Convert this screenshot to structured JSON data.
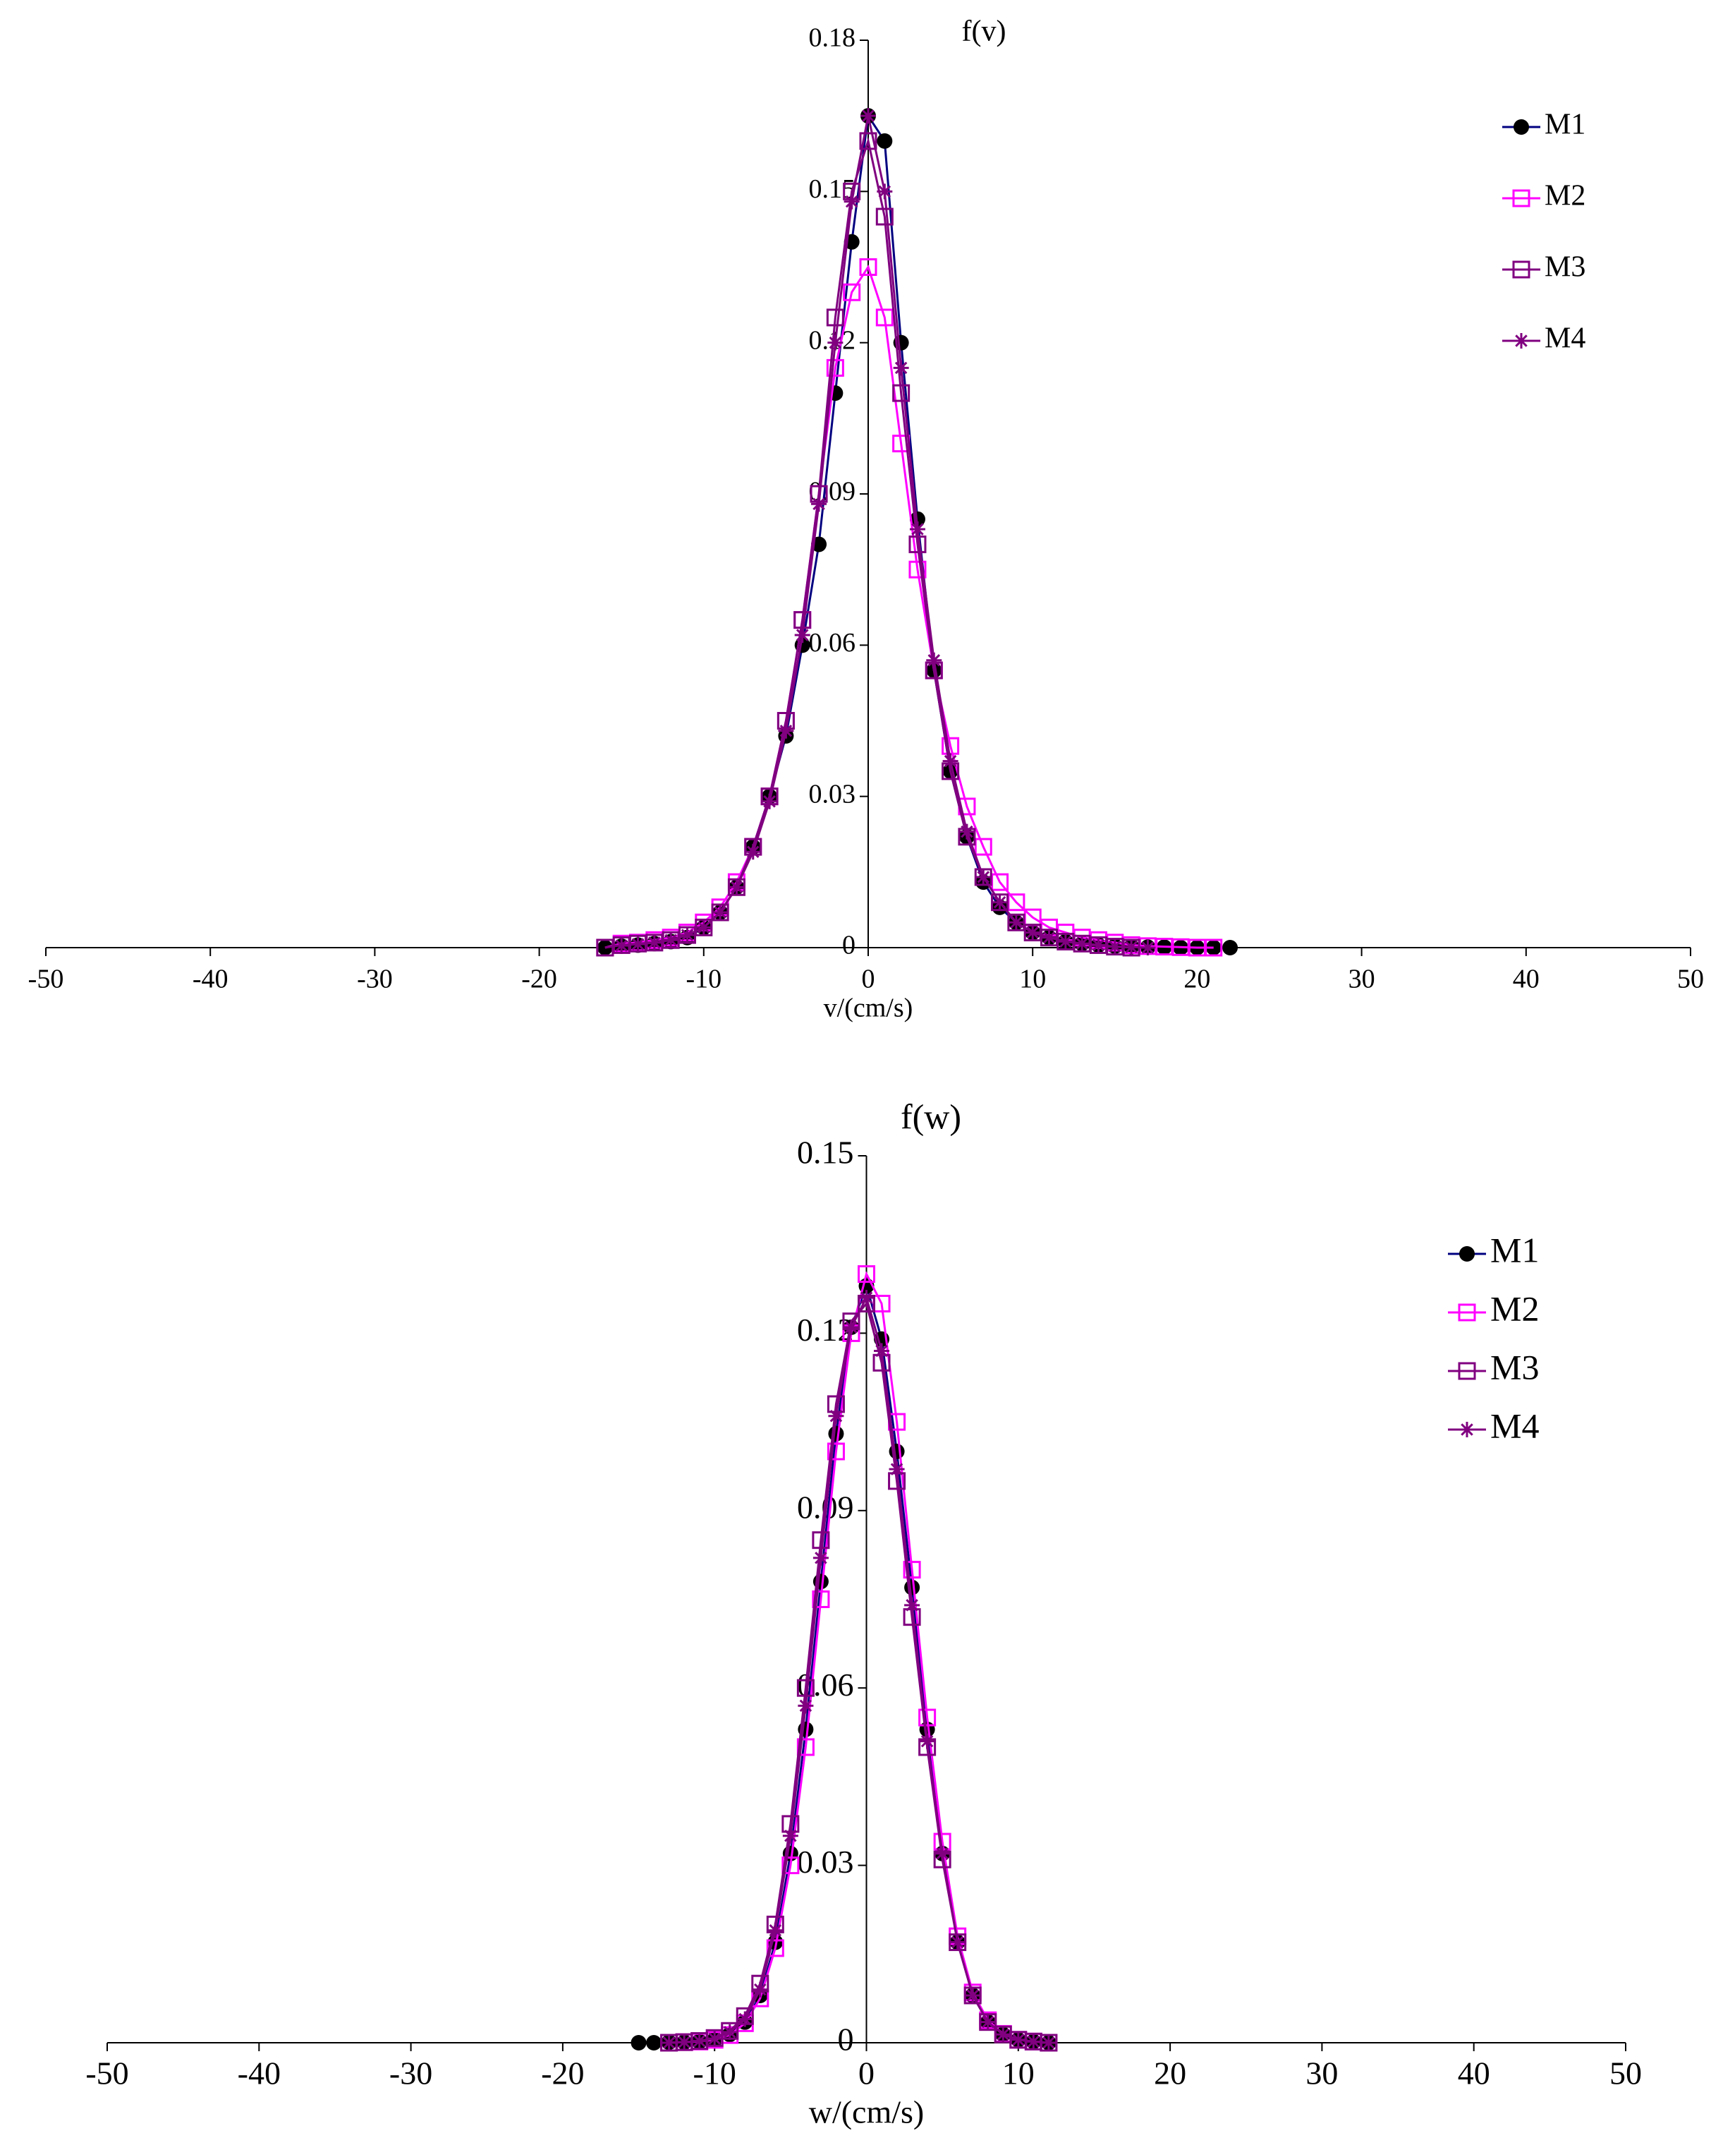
{
  "chart_data": [
    {
      "type": "line",
      "y_label": "f(v)",
      "x_label": "v/(cm/s)",
      "xlim": [
        -50,
        50
      ],
      "xticks": [
        -50,
        -40,
        -30,
        -20,
        -10,
        0,
        10,
        20,
        30,
        40,
        50
      ],
      "ylim": [
        0,
        0.18
      ],
      "yticks": [
        0,
        0.03,
        0.06,
        0.09,
        0.12,
        0.15,
        0.18
      ],
      "x": [
        -16,
        -15,
        -14,
        -13,
        -12,
        -11,
        -10,
        -9,
        -8,
        -7,
        -6,
        -5,
        -4,
        -3,
        -2,
        -1,
        0,
        1,
        2,
        3,
        4,
        5,
        6,
        7,
        8,
        9,
        10,
        11,
        12,
        13,
        14,
        15,
        16,
        17,
        18,
        19,
        20,
        21,
        22
      ],
      "series": [
        {
          "name": "M1",
          "color": "#000080",
          "marker_color": "#000000",
          "marker": "circle",
          "values": [
            0,
            0.0003,
            0.0005,
            0.0008,
            0.0012,
            0.002,
            0.004,
            0.007,
            0.012,
            0.02,
            0.03,
            0.042,
            0.06,
            0.08,
            0.11,
            0.14,
            0.165,
            0.16,
            0.12,
            0.085,
            0.055,
            0.035,
            0.022,
            0.013,
            0.008,
            0.005,
            0.003,
            0.002,
            0.0012,
            0.0008,
            0.0005,
            0.0003,
            0.0002,
            0.0001,
            0.0001,
            0,
            0,
            0,
            0
          ]
        },
        {
          "name": "M2",
          "color": "#ff00ff",
          "marker_color": "#ff00ff",
          "marker": "square",
          "values": [
            0,
            0.0008,
            0.001,
            0.0015,
            0.002,
            0.003,
            0.005,
            0.008,
            0.013,
            0.02,
            0.03,
            0.045,
            0.065,
            0.09,
            0.115,
            0.13,
            0.135,
            0.125,
            0.1,
            0.075,
            0.055,
            0.04,
            0.028,
            0.02,
            0.013,
            0.009,
            0.006,
            0.004,
            0.003,
            0.002,
            0.0015,
            0.001,
            0.0005,
            0.0003,
            0.0002,
            0.0001,
            0,
            0,
            null
          ]
        },
        {
          "name": "M3",
          "color": "#800080",
          "marker_color": "#800080",
          "marker": "square",
          "values": [
            0,
            0.0005,
            0.0008,
            0.001,
            0.0015,
            0.0025,
            0.004,
            0.007,
            0.012,
            0.02,
            0.03,
            0.045,
            0.065,
            0.09,
            0.125,
            0.15,
            0.16,
            0.145,
            0.11,
            0.08,
            0.055,
            0.035,
            0.022,
            0.014,
            0.009,
            0.005,
            0.003,
            0.002,
            0.0012,
            0.0008,
            0.0005,
            0.0002,
            0,
            null,
            null,
            null,
            null,
            null,
            null
          ]
        },
        {
          "name": "M4",
          "color": "#800080",
          "marker_color": "#800080",
          "marker": "star",
          "values": [
            null,
            0.0004,
            0.0007,
            0.001,
            0.0015,
            0.0025,
            0.004,
            0.007,
            0.012,
            0.019,
            0.029,
            0.043,
            0.062,
            0.088,
            0.12,
            0.148,
            0.165,
            0.15,
            0.115,
            0.083,
            0.057,
            0.037,
            0.023,
            0.014,
            0.009,
            0.005,
            0.003,
            0.002,
            0.0012,
            0.0008,
            0.0005,
            0.0002,
            0.0001,
            0,
            null,
            null,
            null,
            null,
            null
          ]
        }
      ],
      "legend": "upper right"
    },
    {
      "type": "line",
      "y_label": "f(w)",
      "x_label": "w/(cm/s)",
      "xlim": [
        -50,
        50
      ],
      "xticks": [
        -50,
        -40,
        -30,
        -20,
        -10,
        0,
        10,
        20,
        30,
        40,
        50
      ],
      "ylim": [
        0,
        0.15
      ],
      "yticks": [
        0,
        0.03,
        0.06,
        0.09,
        0.12,
        0.15
      ],
      "x": [
        -15,
        -14,
        -13,
        -12,
        -11,
        -10,
        -9,
        -8,
        -7,
        -6,
        -5,
        -4,
        -3,
        -2,
        -1,
        0,
        1,
        2,
        3,
        4,
        5,
        6,
        7,
        8,
        9,
        10,
        11,
        12
      ],
      "series": [
        {
          "name": "M1",
          "color": "#000080",
          "marker_color": "#000000",
          "marker": "circle",
          "values": [
            0,
            0,
            0.0001,
            0.0001,
            0.0002,
            0.0005,
            0.0014,
            0.0035,
            0.008,
            0.017,
            0.032,
            0.053,
            0.078,
            0.103,
            0.121,
            0.128,
            0.119,
            0.1,
            0.077,
            0.053,
            0.032,
            0.017,
            0.008,
            0.0035,
            0.0014,
            0.0005,
            0.0002,
            0
          ]
        },
        {
          "name": "M2",
          "color": "#ff00ff",
          "marker_color": "#ff00ff",
          "marker": "square",
          "values": [
            null,
            null,
            0,
            0.0001,
            0.0002,
            0.0005,
            0.0013,
            0.0033,
            0.0075,
            0.016,
            0.03,
            0.05,
            0.075,
            0.1,
            0.12,
            0.13,
            0.125,
            0.105,
            0.08,
            0.055,
            0.034,
            0.018,
            0.0085,
            0.0038,
            0.0015,
            0.0005,
            0.0002,
            0
          ]
        },
        {
          "name": "M3",
          "color": "#800080",
          "marker_color": "#800080",
          "marker": "square",
          "values": [
            null,
            null,
            0,
            0.0001,
            0.0003,
            0.0008,
            0.002,
            0.0045,
            0.01,
            0.02,
            0.037,
            0.06,
            0.085,
            0.108,
            0.122,
            0.125,
            0.115,
            0.095,
            0.072,
            0.05,
            0.031,
            0.017,
            0.008,
            0.0035,
            0.0014,
            0.0005,
            0.0002,
            0
          ]
        },
        {
          "name": "M4",
          "color": "#800080",
          "marker_color": "#800080",
          "marker": "star",
          "values": [
            null,
            null,
            0,
            0.0001,
            0.0003,
            0.0007,
            0.0018,
            0.004,
            0.009,
            0.019,
            0.035,
            0.057,
            0.082,
            0.106,
            0.121,
            0.126,
            0.117,
            0.097,
            0.074,
            0.051,
            0.032,
            0.017,
            0.008,
            0.0035,
            0.0014,
            0.0005,
            0.0002,
            0
          ]
        }
      ],
      "legend": "upper right"
    }
  ]
}
